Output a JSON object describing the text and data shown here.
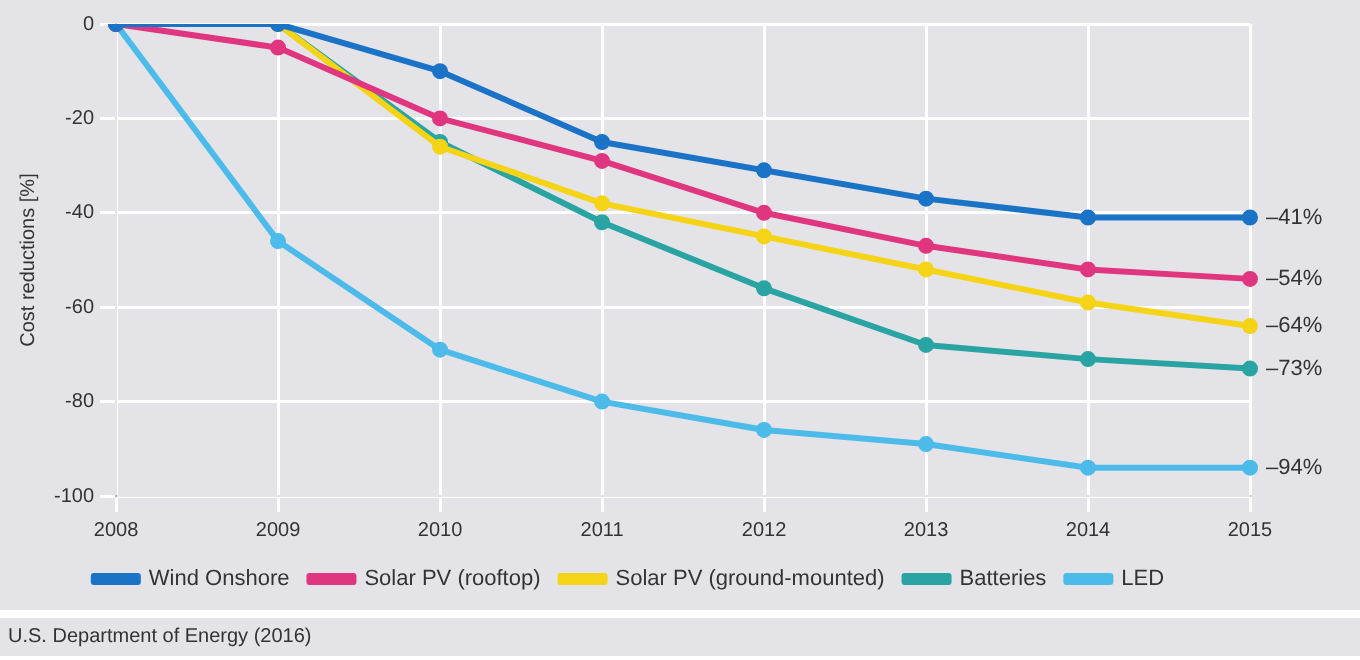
{
  "chart_data": {
    "type": "line",
    "ylabel": "Cost reductions [%]",
    "categories": [
      "2008",
      "2009",
      "2010",
      "2011",
      "2012",
      "2013",
      "2014",
      "2015"
    ],
    "series": [
      {
        "name": "Wind Onshore",
        "color": "#1a73c6",
        "values": [
          0,
          0,
          -10,
          -25,
          -31,
          -37,
          -41,
          -41
        ],
        "value_labels": [
          null,
          null,
          null,
          null,
          null,
          null,
          null,
          "–41%"
        ]
      },
      {
        "name": "Solar PV (rooftop)",
        "color": "#e0367f",
        "values": [
          0,
          -5,
          -20,
          -29,
          -40,
          -47,
          -52,
          -54
        ],
        "value_labels": [
          null,
          null,
          null,
          null,
          null,
          null,
          null,
          "–54%"
        ]
      },
      {
        "name": "Solar PV (ground-mounted)",
        "color": "#f5d418",
        "values": [
          0,
          0,
          -26,
          -38,
          -45,
          -52,
          -59,
          -64
        ],
        "value_labels": [
          null,
          null,
          null,
          null,
          null,
          null,
          null,
          "–64%"
        ]
      },
      {
        "name": "Batteries",
        "color": "#2aa3a3",
        "values": [
          0,
          0,
          -25,
          -42,
          -56,
          -68,
          -71,
          -73
        ],
        "value_labels": [
          null,
          null,
          null,
          null,
          null,
          null,
          null,
          "–73%"
        ]
      },
      {
        "name": "LED",
        "color": "#4cbbea",
        "values": [
          0,
          -46,
          -69,
          -80,
          -86,
          -89,
          -94,
          -94
        ],
        "value_labels": [
          null,
          null,
          null,
          null,
          null,
          null,
          null,
          "–94%"
        ]
      }
    ],
    "ylim": [
      -100,
      0
    ],
    "yticks": [
      0,
      -20,
      -40,
      -60,
      -80,
      -100
    ],
    "grid": true,
    "legend": "bottom",
    "marker": "circle",
    "line_style": "solid",
    "annotations": [
      "U.S. Department of Energy (2016)"
    ]
  }
}
